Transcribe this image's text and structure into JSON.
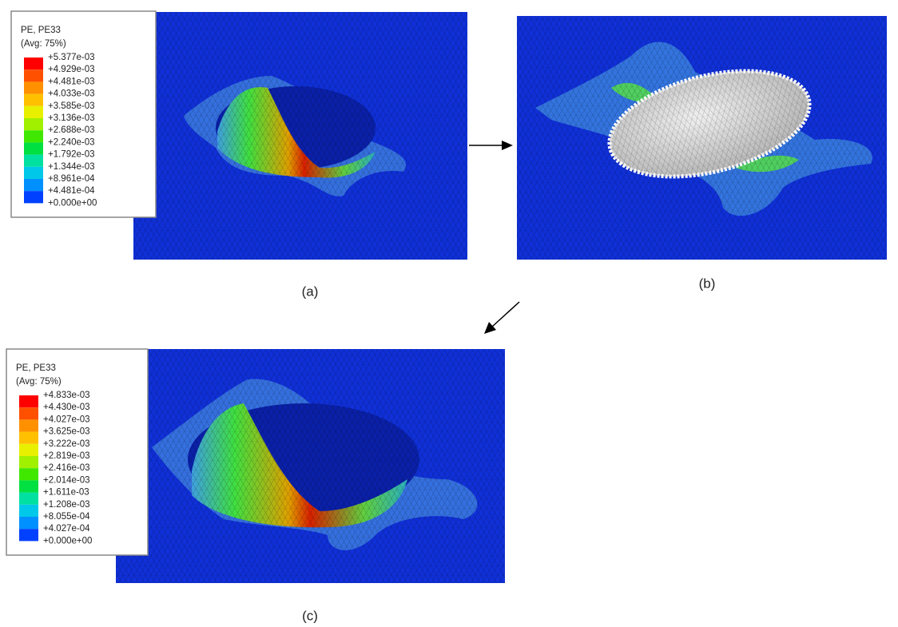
{
  "panels": [
    {
      "caption": "(a)",
      "legend": {
        "title": "PE, PE33",
        "subtitle": "(Avg: 75%)",
        "labels": [
          "+5.377e-03",
          "+4.929e-03",
          "+4.481e-03",
          "+4.033e-03",
          "+3.585e-03",
          "+3.136e-03",
          "+2.688e-03",
          "+2.240e-03",
          "+1.792e-03",
          "+1.344e-03",
          "+8.961e-04",
          "+4.481e-04",
          "+0.000e+00"
        ]
      }
    },
    {
      "caption": "(b)"
    },
    {
      "caption": "(c)",
      "legend": {
        "title": "PE, PE33",
        "subtitle": "(Avg: 75%)",
        "labels": [
          "+4.833e-03",
          "+4.430e-03",
          "+4.027e-03",
          "+3.625e-03",
          "+3.222e-03",
          "+2.819e-03",
          "+2.416e-03",
          "+2.014e-03",
          "+1.611e-03",
          "+1.208e-03",
          "+8.055e-04",
          "+4.027e-04",
          "+0.000e+00"
        ]
      }
    }
  ]
}
